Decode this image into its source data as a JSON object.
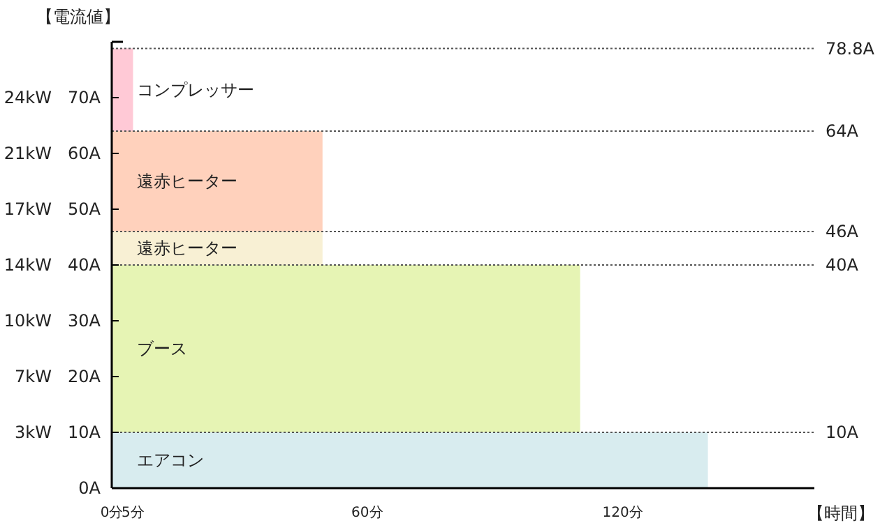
{
  "chart_data": {
    "type": "area",
    "stacked": true,
    "ylabel": "【電流値】",
    "xlabel": "【時間】",
    "xlim": [
      0,
      165
    ],
    "xticks": [
      {
        "value": 0,
        "label": "0分"
      },
      {
        "value": 5,
        "label": "5分"
      },
      {
        "value": 60,
        "label": "60分"
      },
      {
        "value": 120,
        "label": "120分"
      }
    ],
    "ylim": [
      0,
      80
    ],
    "yticks": [
      {
        "value": 0,
        "label": "0A"
      },
      {
        "value": 10,
        "label": "10A"
      },
      {
        "value": 20,
        "label": "20A"
      },
      {
        "value": 30,
        "label": "30A"
      },
      {
        "value": 40,
        "label": "40A"
      },
      {
        "value": 50,
        "label": "50A"
      },
      {
        "value": 60,
        "label": "60A"
      },
      {
        "value": 70,
        "label": "70A"
      }
    ],
    "y2lim": [
      0,
      27.44
    ],
    "y2ticks": [
      {
        "value": 3.43,
        "label": "3kW"
      },
      {
        "value": 6.86,
        "label": "7kW"
      },
      {
        "value": 10.29,
        "label": "10kW"
      },
      {
        "value": 13.72,
        "label": "14kW"
      },
      {
        "value": 17.15,
        "label": "17kW"
      },
      {
        "value": 20.58,
        "label": "21kW"
      },
      {
        "value": 24.01,
        "label": "24kW"
      }
    ],
    "series": [
      {
        "name": "エアコン",
        "color": "#d8ecef",
        "x": [
          0,
          140
        ],
        "values": [
          10,
          10
        ]
      },
      {
        "name": "ブース",
        "color": "#e6f4b4",
        "x": [
          0,
          110
        ],
        "values": [
          30,
          30
        ]
      },
      {
        "name": "遠赤ヒーター",
        "color": "#f8f0d4",
        "x": [
          0,
          49.5
        ],
        "values": [
          6,
          6
        ]
      },
      {
        "name": "遠赤ヒーター",
        "color": "#ffd1bc",
        "x": [
          0,
          49.5
        ],
        "values": [
          18,
          18
        ]
      },
      {
        "name": "コンプレッサー",
        "color": "#ffc9d6",
        "x": [
          0,
          5
        ],
        "values": [
          14.8,
          14.8
        ]
      }
    ],
    "ref_lines": [
      {
        "axis": "y",
        "value": 10,
        "label": "10A",
        "color": "#555555",
        "line_style": "dotted"
      },
      {
        "axis": "y",
        "value": 40,
        "label": "40A",
        "color": "#555555",
        "line_style": "dotted"
      },
      {
        "axis": "y",
        "value": 46,
        "label": "46A",
        "color": "#555555",
        "line_style": "dotted"
      },
      {
        "axis": "y",
        "value": 64,
        "label": "64A",
        "color": "#555555",
        "line_style": "dotted"
      },
      {
        "axis": "y",
        "value": 78.8,
        "label": "78.8A",
        "color": "#555555",
        "line_style": "dotted"
      }
    ]
  }
}
